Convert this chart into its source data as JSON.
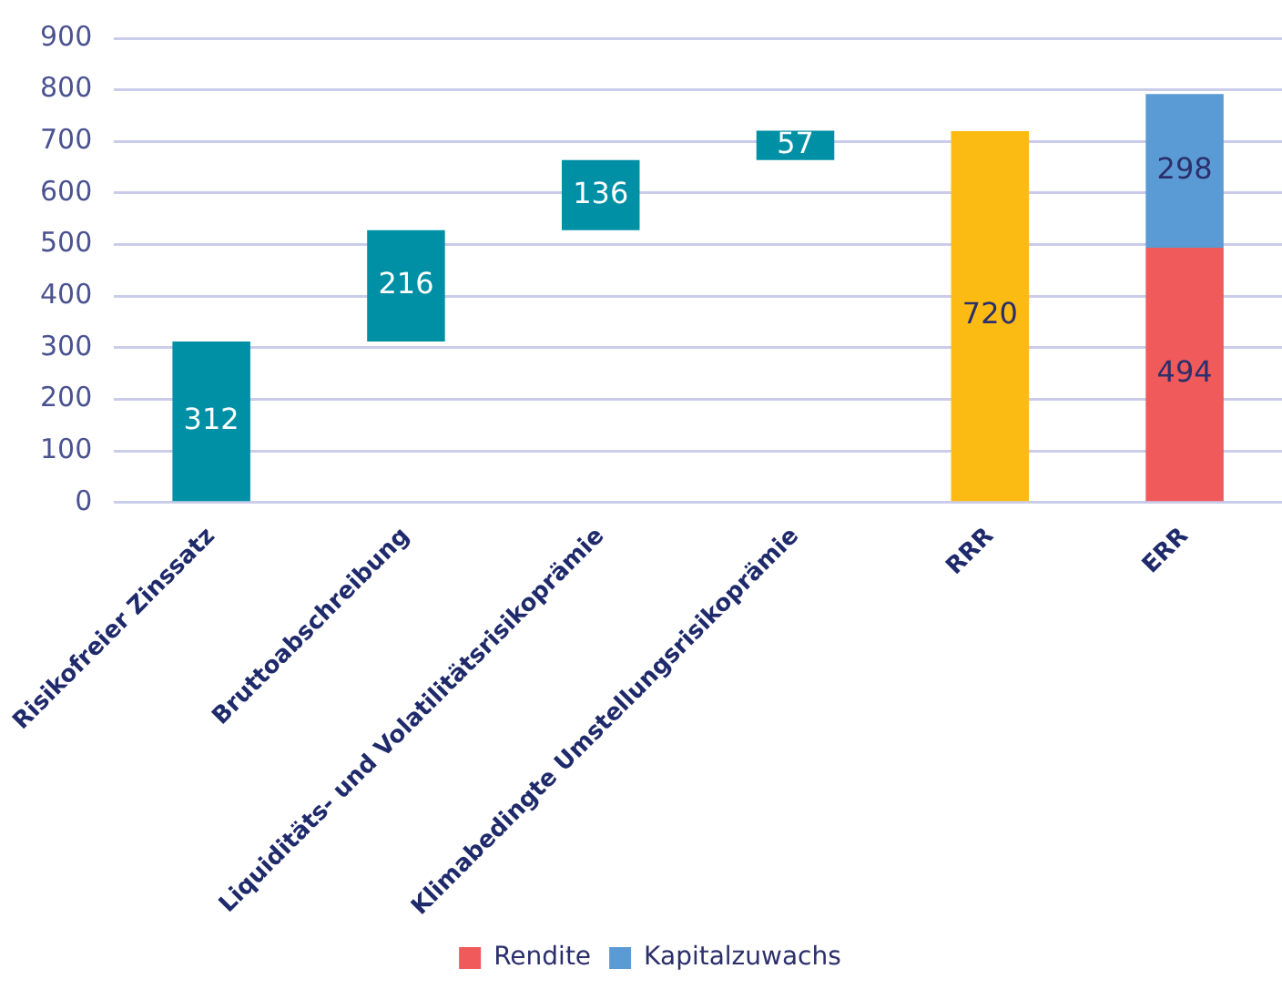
{
  "chart_data": {
    "type": "bar",
    "categories": [
      "Risikofreier Zinssatz",
      "Bruttoabschreibung",
      "Liquiditäts- und Volatilitätsrisikoprämie",
      "Klimabedingte Umstellungsrisikoprämie",
      "RRR",
      "ERR"
    ],
    "stacked": true,
    "series": [
      {
        "color": "#0090a6",
        "values": [
          312,
          216,
          136,
          57,
          null,
          null
        ],
        "base": [
          0,
          312,
          528,
          664,
          null,
          null
        ]
      },
      {
        "color": "#fbbb13",
        "values": [
          null,
          null,
          null,
          null,
          720,
          null
        ]
      },
      {
        "name": "Rendite",
        "color": "#f05a5b",
        "values": [
          null,
          null,
          null,
          null,
          null,
          494
        ]
      },
      {
        "name": "Kapitalzuwachs",
        "color": "#5b9bd5",
        "values": [
          null,
          null,
          null,
          null,
          null,
          298
        ]
      }
    ],
    "ylim": [
      0,
      900
    ],
    "yticks": [
      0,
      100,
      200,
      300,
      400,
      500,
      600,
      700,
      800,
      900
    ],
    "grid": "y",
    "data_labels": true,
    "legend": "bottom"
  }
}
